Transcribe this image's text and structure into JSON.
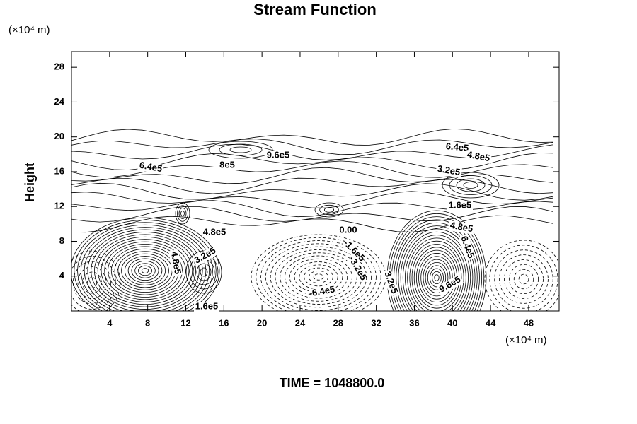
{
  "chart_data": {
    "type": "contour",
    "title": "Stream Function",
    "y_unit": "(×10⁴ m)",
    "x_unit": "(×10⁴ m)",
    "ylabel": "Height",
    "footer": "TIME = 1048800.0",
    "xlim": [
      0,
      51.2
    ],
    "ylim": [
      0,
      29.8
    ],
    "xticks": [
      4,
      8,
      12,
      16,
      20,
      24,
      28,
      32,
      36,
      40,
      44,
      48
    ],
    "yticks": [
      4,
      8,
      12,
      16,
      20,
      24,
      28
    ],
    "contour_labels": [
      "6.4e5",
      "8e5",
      "9.6e5",
      "6.4e5",
      "4.8e5",
      "3.2e5",
      "1.6e5",
      "4.8e5",
      "0.00",
      "4.8e5",
      "-1.6e5",
      "-3.2e5",
      "3.2e5",
      "4.8e5",
      "3.2e5",
      "-6.4e5",
      "9.6e5",
      "1.6e5",
      "6.4e5"
    ]
  }
}
